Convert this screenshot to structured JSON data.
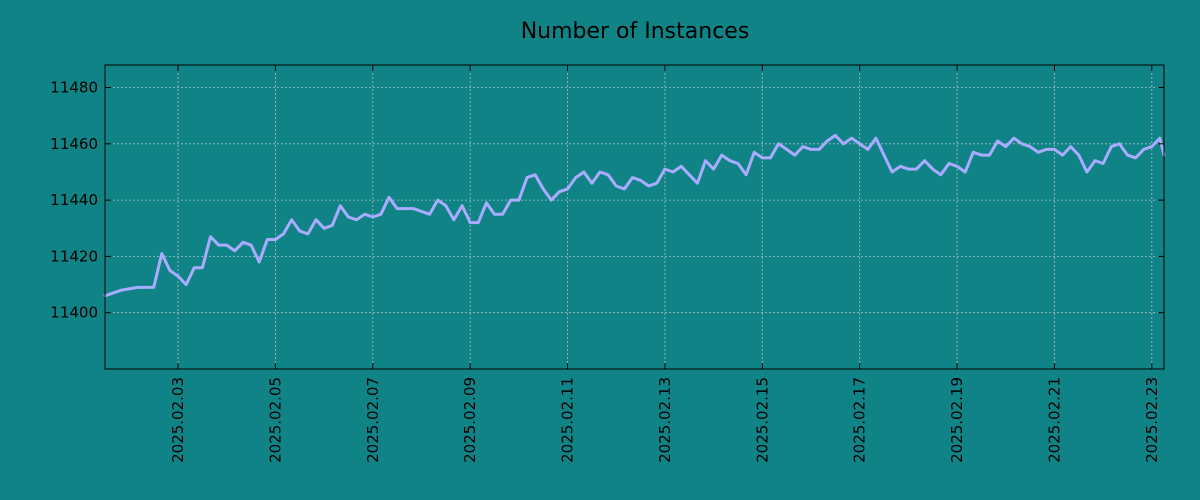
{
  "chart_data": {
    "type": "line",
    "title": "Number of Instances",
    "xlabel": "",
    "ylabel": "",
    "x_start": "2025.02.01 12:00",
    "x_end": "2025.02.23 06:00",
    "ylim": [
      11380,
      11488
    ],
    "yticks": [
      11400,
      11420,
      11440,
      11460,
      11480
    ],
    "xticks": [
      "2025.02.03",
      "2025.02.05",
      "2025.02.07",
      "2025.02.09",
      "2025.02.11",
      "2025.02.13",
      "2025.02.15",
      "2025.02.17",
      "2025.02.19",
      "2025.02.21",
      "2025.02.23"
    ],
    "grid": true,
    "series": [
      {
        "color": "#a9acff",
        "x": [
          "2025.02.01 12:00",
          "2025.02.01 20:00",
          "2025.02.02 04:00",
          "2025.02.02 12:00",
          "2025.02.02 16:00",
          "2025.02.02 20:00",
          "2025.02.03 00:00",
          "2025.02.03 04:00",
          "2025.02.03 08:00",
          "2025.02.03 12:00",
          "2025.02.03 16:00",
          "2025.02.03 20:00",
          "2025.02.04 00:00",
          "2025.02.04 04:00",
          "2025.02.04 08:00",
          "2025.02.04 12:00",
          "2025.02.04 16:00",
          "2025.02.04 20:00",
          "2025.02.05 00:00",
          "2025.02.05 04:00",
          "2025.02.05 08:00",
          "2025.02.05 12:00",
          "2025.02.05 16:00",
          "2025.02.05 20:00",
          "2025.02.06 00:00",
          "2025.02.06 04:00",
          "2025.02.06 08:00",
          "2025.02.06 12:00",
          "2025.02.06 16:00",
          "2025.02.06 20:00",
          "2025.02.07 00:00",
          "2025.02.07 04:00",
          "2025.02.07 08:00",
          "2025.02.07 12:00",
          "2025.02.07 16:00",
          "2025.02.07 20:00",
          "2025.02.08 00:00",
          "2025.02.08 04:00",
          "2025.02.08 08:00",
          "2025.02.08 12:00",
          "2025.02.08 16:00",
          "2025.02.08 20:00",
          "2025.02.09 00:00",
          "2025.02.09 04:00",
          "2025.02.09 08:00",
          "2025.02.09 12:00",
          "2025.02.09 16:00",
          "2025.02.09 20:00",
          "2025.02.10 00:00",
          "2025.02.10 04:00",
          "2025.02.10 08:00",
          "2025.02.10 12:00",
          "2025.02.10 16:00",
          "2025.02.10 20:00",
          "2025.02.11 00:00",
          "2025.02.11 04:00",
          "2025.02.11 08:00",
          "2025.02.11 12:00",
          "2025.02.11 16:00",
          "2025.02.11 20:00",
          "2025.02.12 00:00",
          "2025.02.12 04:00",
          "2025.02.12 08:00",
          "2025.02.12 12:00",
          "2025.02.12 16:00",
          "2025.02.12 20:00",
          "2025.02.13 00:00",
          "2025.02.13 04:00",
          "2025.02.13 08:00",
          "2025.02.13 12:00",
          "2025.02.13 16:00",
          "2025.02.13 20:00",
          "2025.02.14 00:00",
          "2025.02.14 04:00",
          "2025.02.14 08:00",
          "2025.02.14 12:00",
          "2025.02.14 16:00",
          "2025.02.14 20:00",
          "2025.02.15 00:00",
          "2025.02.15 04:00",
          "2025.02.15 08:00",
          "2025.02.15 12:00",
          "2025.02.15 16:00",
          "2025.02.15 20:00",
          "2025.02.16 00:00",
          "2025.02.16 04:00",
          "2025.02.16 08:00",
          "2025.02.16 12:00",
          "2025.02.16 16:00",
          "2025.02.16 20:00",
          "2025.02.17 00:00",
          "2025.02.17 04:00",
          "2025.02.17 08:00",
          "2025.02.17 12:00",
          "2025.02.17 16:00",
          "2025.02.17 20:00",
          "2025.02.18 00:00",
          "2025.02.18 04:00",
          "2025.02.18 08:00",
          "2025.02.18 12:00",
          "2025.02.18 16:00",
          "2025.02.18 20:00",
          "2025.02.19 00:00",
          "2025.02.19 04:00",
          "2025.02.19 08:00",
          "2025.02.19 12:00",
          "2025.02.19 16:00",
          "2025.02.19 20:00",
          "2025.02.20 00:00",
          "2025.02.20 04:00",
          "2025.02.20 08:00",
          "2025.02.20 12:00",
          "2025.02.20 16:00",
          "2025.02.20 20:00",
          "2025.02.21 00:00",
          "2025.02.21 04:00",
          "2025.02.21 08:00",
          "2025.02.21 12:00",
          "2025.02.21 16:00",
          "2025.02.21 20:00",
          "2025.02.22 00:00",
          "2025.02.22 04:00",
          "2025.02.22 08:00",
          "2025.02.22 12:00",
          "2025.02.22 16:00",
          "2025.02.22 20:00",
          "2025.02.23 00:00",
          "2025.02.23 04:00",
          "2025.02.23 06:00"
        ],
        "values": [
          11406,
          11408,
          11409,
          11409,
          11421,
          11415,
          11413,
          11410,
          11416,
          11416,
          11427,
          11424,
          11424,
          11422,
          11425,
          11424,
          11418,
          11426,
          11426,
          11428,
          11433,
          11429,
          11428,
          11433,
          11430,
          11431,
          11438,
          11434,
          11433,
          11435,
          11434,
          11435,
          11441,
          11437,
          11437,
          11437,
          11436,
          11435,
          11440,
          11438,
          11433,
          11438,
          11432,
          11432,
          11439,
          11435,
          11435,
          11440,
          11440,
          11448,
          11449,
          11444,
          11440,
          11443,
          11444,
          11448,
          11450,
          11446,
          11450,
          11449,
          11445,
          11444,
          11448,
          11447,
          11445,
          11446,
          11451,
          11450,
          11452,
          11449,
          11446,
          11454,
          11451,
          11456,
          11454,
          11453,
          11449,
          11457,
          11455,
          11455,
          11460,
          11458,
          11456,
          11459,
          11458,
          11458,
          11461,
          11463,
          11460,
          11462,
          11460,
          11458,
          11462,
          11456,
          11450,
          11452,
          11451,
          11451,
          11454,
          11451,
          11449,
          11453,
          11452,
          11450,
          11457,
          11456,
          11456,
          11461,
          11459,
          11462,
          11460,
          11459,
          11457,
          11458,
          11458,
          11456,
          11459,
          11456,
          11450,
          11454,
          11453,
          11459,
          11460,
          11456,
          11455,
          11458,
          11459,
          11462,
          11456
        ]
      }
    ]
  }
}
